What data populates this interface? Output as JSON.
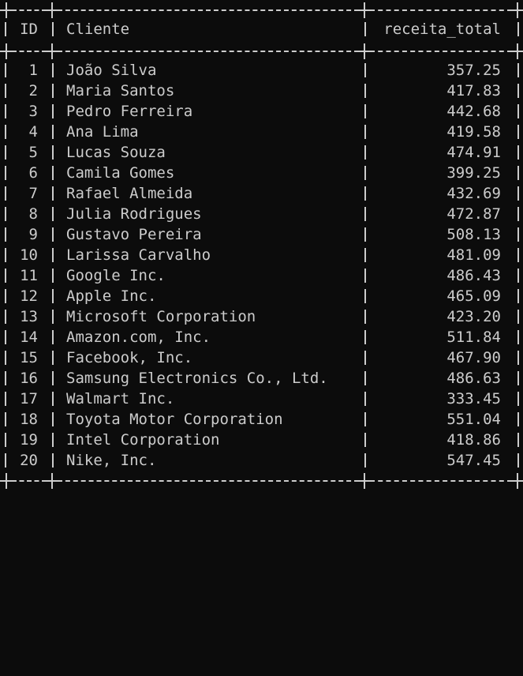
{
  "table": {
    "headers": {
      "id": "ID",
      "cliente": "Cliente",
      "receita_total": "receita_total"
    },
    "rows": [
      {
        "id": "1",
        "cliente": "João Silva",
        "receita_total": "357.25"
      },
      {
        "id": "2",
        "cliente": "Maria Santos",
        "receita_total": "417.83"
      },
      {
        "id": "3",
        "cliente": "Pedro Ferreira",
        "receita_total": "442.68"
      },
      {
        "id": "4",
        "cliente": "Ana Lima",
        "receita_total": "419.58"
      },
      {
        "id": "5",
        "cliente": "Lucas Souza",
        "receita_total": "474.91"
      },
      {
        "id": "6",
        "cliente": "Camila Gomes",
        "receita_total": "399.25"
      },
      {
        "id": "7",
        "cliente": "Rafael Almeida",
        "receita_total": "432.69"
      },
      {
        "id": "8",
        "cliente": "Julia Rodrigues",
        "receita_total": "472.87"
      },
      {
        "id": "9",
        "cliente": "Gustavo Pereira",
        "receita_total": "508.13"
      },
      {
        "id": "10",
        "cliente": "Larissa Carvalho",
        "receita_total": "481.09"
      },
      {
        "id": "11",
        "cliente": "Google Inc.",
        "receita_total": "486.43"
      },
      {
        "id": "12",
        "cliente": "Apple Inc.",
        "receita_total": "465.09"
      },
      {
        "id": "13",
        "cliente": "Microsoft Corporation",
        "receita_total": "423.20"
      },
      {
        "id": "14",
        "cliente": "Amazon.com, Inc.",
        "receita_total": "511.84"
      },
      {
        "id": "15",
        "cliente": "Facebook, Inc.",
        "receita_total": "467.90"
      },
      {
        "id": "16",
        "cliente": "Samsung Electronics Co., Ltd.",
        "receita_total": "486.63"
      },
      {
        "id": "17",
        "cliente": "Walmart Inc.",
        "receita_total": "333.45"
      },
      {
        "id": "18",
        "cliente": "Toyota Motor Corporation",
        "receita_total": "551.04"
      },
      {
        "id": "19",
        "cliente": "Intel Corporation",
        "receita_total": "418.86"
      },
      {
        "id": "20",
        "cliente": "Nike, Inc.",
        "receita_total": "547.45"
      }
    ]
  },
  "colors": {
    "background": "#0c0c0c",
    "text": "#cccccc"
  }
}
